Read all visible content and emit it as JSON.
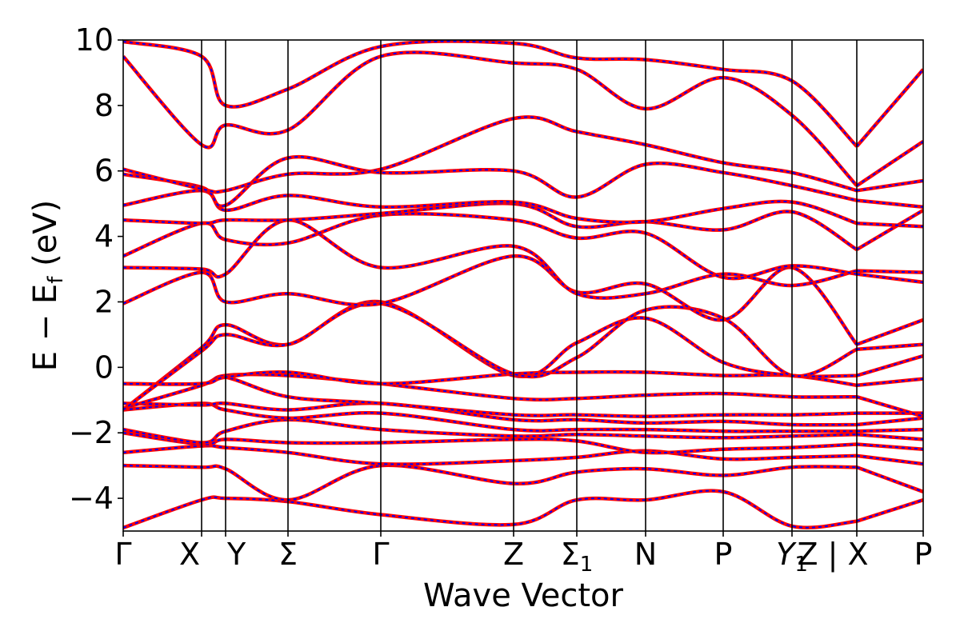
{
  "figure": {
    "xlabel": "Wave Vector",
    "ylabel_main": "E − E",
    "ylabel_sub": "f",
    "ylabel_unit": " (eV)"
  },
  "chart_data": {
    "type": "line",
    "title": "",
    "xlabel": "Wave Vector",
    "ylabel": "E − E_f (eV)",
    "ylim": [
      -5,
      10
    ],
    "yticks": [
      -4,
      -2,
      0,
      2,
      4,
      6,
      8,
      10
    ],
    "ytick_labels": [
      "−4",
      "−2",
      "0",
      "2",
      "4",
      "6",
      "8",
      "10"
    ],
    "xlim": [
      0,
      10
    ],
    "grid": false,
    "high_symmetry_points": [
      {
        "label": "Γ",
        "sub": "",
        "italic": false,
        "x": 0.0
      },
      {
        "label": "X",
        "sub": "",
        "italic": false,
        "x": 0.98
      },
      {
        "label": "Y",
        "sub": "",
        "italic": false,
        "x": 1.28
      },
      {
        "label": "Σ",
        "sub": "",
        "italic": false,
        "x": 2.06
      },
      {
        "label": "Γ",
        "sub": "",
        "italic": false,
        "x": 3.22
      },
      {
        "label": "Z",
        "sub": "",
        "italic": false,
        "x": 4.88
      },
      {
        "label": "Σ",
        "sub": "1",
        "italic": false,
        "x": 5.67
      },
      {
        "label": "N",
        "sub": "",
        "italic": false,
        "x": 6.53
      },
      {
        "label": "P",
        "sub": "",
        "italic": false,
        "x": 7.5
      },
      {
        "label": "Y",
        "sub": "1",
        "italic": true,
        "x": 8.36
      },
      {
        "label": "Z | X",
        "sub": "",
        "italic": false,
        "x": 9.17
      },
      {
        "label": "P",
        "sub": "",
        "italic": false,
        "x": 10.0
      }
    ],
    "path_break_x": 9.17,
    "style": {
      "line_color": "#ff0000",
      "dash_color": "#0000ff"
    },
    "series": [
      {
        "x": [
          0,
          0.98,
          1.28,
          2.06,
          3.22,
          4.88,
          5.67,
          6.53,
          7.5,
          8.36,
          9.17,
          10
        ],
        "y": [
          -4.9,
          -4.05,
          -4.0,
          -4.1,
          -4.5,
          -4.8,
          -4.05,
          -4.05,
          -3.8,
          -4.85,
          -4.7,
          -4.05
        ]
      },
      {
        "x": [
          0,
          0.98,
          1.28,
          2.06,
          3.22,
          4.88,
          5.67,
          6.53,
          7.5,
          8.36,
          9.17,
          10
        ],
        "y": [
          -3.0,
          -3.05,
          -3.1,
          -4.05,
          -3.0,
          -3.55,
          -3.2,
          -3.1,
          -3.3,
          -3.05,
          -3.05,
          -3.8
        ]
      },
      {
        "x": [
          0,
          0.98,
          1.28,
          2.06,
          3.22,
          4.88,
          5.67,
          6.53,
          7.5,
          8.36,
          9.17,
          10
        ],
        "y": [
          -2.6,
          -2.4,
          -2.45,
          -2.6,
          -2.95,
          -2.85,
          -2.75,
          -2.55,
          -2.8,
          -2.75,
          -2.7,
          -2.95
        ]
      },
      {
        "x": [
          0,
          0.98,
          1.28,
          2.06,
          3.22,
          4.88,
          5.67,
          6.53,
          7.5,
          8.36,
          9.17,
          10
        ],
        "y": [
          -2.0,
          -2.35,
          -2.2,
          -2.3,
          -2.3,
          -2.2,
          -2.25,
          -2.6,
          -2.5,
          -2.45,
          -2.35,
          -2.5
        ]
      },
      {
        "x": [
          0,
          0.98,
          1.28,
          2.06,
          3.22,
          4.88,
          5.67,
          6.53,
          7.5,
          8.36,
          9.17,
          10
        ],
        "y": [
          -1.9,
          -2.3,
          -1.95,
          -1.6,
          -1.9,
          -2.1,
          -2.05,
          -2.1,
          -2.15,
          -2.1,
          -2.05,
          -2.2
        ]
      },
      {
        "x": [
          0,
          0.98,
          1.28,
          2.06,
          3.22,
          4.88,
          5.67,
          6.53,
          7.5,
          8.36,
          9.17,
          10
        ],
        "y": [
          -1.3,
          -1.1,
          -1.3,
          -1.55,
          -1.4,
          -1.9,
          -1.9,
          -1.9,
          -1.95,
          -1.95,
          -1.95,
          -1.9
        ]
      },
      {
        "x": [
          0,
          0.98,
          1.28,
          2.06,
          3.22,
          4.88,
          5.67,
          6.53,
          7.5,
          8.36,
          9.17,
          10
        ],
        "y": [
          -1.1,
          -1.15,
          -1.1,
          -1.3,
          -1.1,
          -1.6,
          -1.6,
          -1.7,
          -1.65,
          -1.75,
          -1.75,
          -1.55
        ]
      },
      {
        "x": [
          0,
          0.98,
          1.28,
          2.06,
          3.22,
          4.88,
          5.67,
          6.53,
          7.5,
          8.36,
          9.17,
          10
        ],
        "y": [
          -0.5,
          -0.5,
          -0.3,
          -0.9,
          -1.1,
          -1.45,
          -1.45,
          -1.5,
          -1.45,
          -1.45,
          -1.4,
          -1.4
        ]
      },
      {
        "x": [
          0,
          0.98,
          1.28,
          2.06,
          3.22,
          4.88,
          5.67,
          6.53,
          7.5,
          8.36,
          9.17,
          10
        ],
        "y": [
          -1.25,
          -0.55,
          -0.25,
          -0.25,
          -0.5,
          -0.95,
          -0.95,
          -0.85,
          -0.8,
          -0.9,
          -0.9,
          -1.5
        ]
      },
      {
        "x": [
          0,
          0.98,
          1.28,
          2.06,
          3.22,
          4.88,
          5.67,
          6.53,
          7.5,
          8.36,
          9.17,
          10
        ],
        "y": [
          -0.5,
          -0.5,
          -0.3,
          -0.15,
          -0.5,
          -0.2,
          -0.15,
          -0.15,
          -0.25,
          -0.25,
          -0.55,
          -0.35
        ]
      },
      {
        "x": [
          0,
          0.98,
          1.28,
          2.06,
          3.22,
          4.88,
          5.67,
          6.53,
          7.5,
          8.36,
          9.17,
          10
        ],
        "y": [
          -1.3,
          0.6,
          1.3,
          0.7,
          2.0,
          -0.25,
          0.75,
          1.5,
          0.15,
          -0.25,
          -0.25,
          0.35
        ]
      },
      {
        "x": [
          0,
          0.98,
          1.28,
          2.06,
          3.22,
          4.88,
          5.67,
          6.53,
          7.5,
          8.36,
          9.17,
          10
        ],
        "y": [
          -1.3,
          0.5,
          1.0,
          0.7,
          1.95,
          -0.2,
          0.3,
          1.75,
          1.5,
          -0.25,
          0.55,
          0.7
        ]
      },
      {
        "x": [
          0,
          0.98,
          1.28,
          2.06,
          3.22,
          4.88,
          5.67,
          6.53,
          7.5,
          8.36,
          9.17,
          10
        ],
        "y": [
          1.95,
          2.9,
          2.0,
          2.25,
          1.95,
          3.4,
          2.3,
          2.55,
          1.45,
          3.05,
          0.7,
          1.45
        ]
      },
      {
        "x": [
          0,
          0.98,
          1.28,
          2.06,
          3.22,
          4.88,
          5.67,
          6.53,
          7.5,
          8.36,
          9.17,
          10
        ],
        "y": [
          3.05,
          3.0,
          2.85,
          4.5,
          3.05,
          3.7,
          2.25,
          2.25,
          2.85,
          2.5,
          2.95,
          2.9
        ]
      },
      {
        "x": [
          0,
          0.98,
          1.28,
          2.06,
          3.22,
          4.88,
          5.67,
          6.53,
          7.5,
          8.36,
          9.17,
          10
        ],
        "y": [
          3.4,
          4.4,
          3.9,
          3.8,
          4.65,
          4.5,
          3.95,
          4.1,
          2.75,
          3.1,
          2.85,
          2.6
        ]
      },
      {
        "x": [
          0,
          0.98,
          1.28,
          2.06,
          3.22,
          4.88,
          5.67,
          6.53,
          7.5,
          8.36,
          9.17,
          10
        ],
        "y": [
          4.5,
          4.4,
          4.5,
          4.5,
          4.7,
          5.0,
          4.3,
          4.45,
          4.2,
          4.75,
          3.6,
          4.8
        ]
      },
      {
        "x": [
          0,
          0.98,
          1.28,
          2.06,
          3.22,
          4.88,
          5.67,
          6.53,
          7.5,
          8.36,
          9.17,
          10
        ],
        "y": [
          4.95,
          5.4,
          4.8,
          5.25,
          4.9,
          5.05,
          4.55,
          4.45,
          4.85,
          5.05,
          4.4,
          4.3
        ]
      },
      {
        "x": [
          0,
          0.98,
          1.28,
          2.06,
          3.22,
          4.88,
          5.67,
          6.53,
          7.5,
          8.36,
          9.17,
          10
        ],
        "y": [
          5.9,
          5.5,
          4.95,
          6.4,
          5.95,
          6.0,
          5.2,
          6.2,
          5.95,
          5.55,
          5.1,
          4.9
        ]
      },
      {
        "x": [
          0,
          0.98,
          1.28,
          2.06,
          3.22,
          4.88,
          5.67,
          6.53,
          7.5,
          8.36,
          9.17,
          10
        ],
        "y": [
          6.05,
          5.45,
          5.4,
          5.9,
          6.05,
          7.6,
          7.2,
          6.8,
          6.25,
          5.95,
          5.4,
          5.7
        ]
      },
      {
        "x": [
          0,
          0.98,
          1.28,
          2.06,
          3.22,
          4.88,
          5.67,
          6.53,
          7.5,
          8.36,
          9.17,
          10
        ],
        "y": [
          9.5,
          6.8,
          7.4,
          7.25,
          9.5,
          9.3,
          9.1,
          7.9,
          8.85,
          7.7,
          5.55,
          6.9
        ]
      },
      {
        "x": [
          0,
          0.98,
          1.28,
          2.06,
          3.22,
          4.88,
          5.67,
          6.53,
          7.5,
          8.36,
          9.17,
          10
        ],
        "y": [
          9.95,
          9.5,
          8.0,
          8.5,
          9.8,
          9.9,
          9.45,
          9.4,
          9.1,
          8.75,
          6.75,
          9.1
        ]
      }
    ]
  }
}
